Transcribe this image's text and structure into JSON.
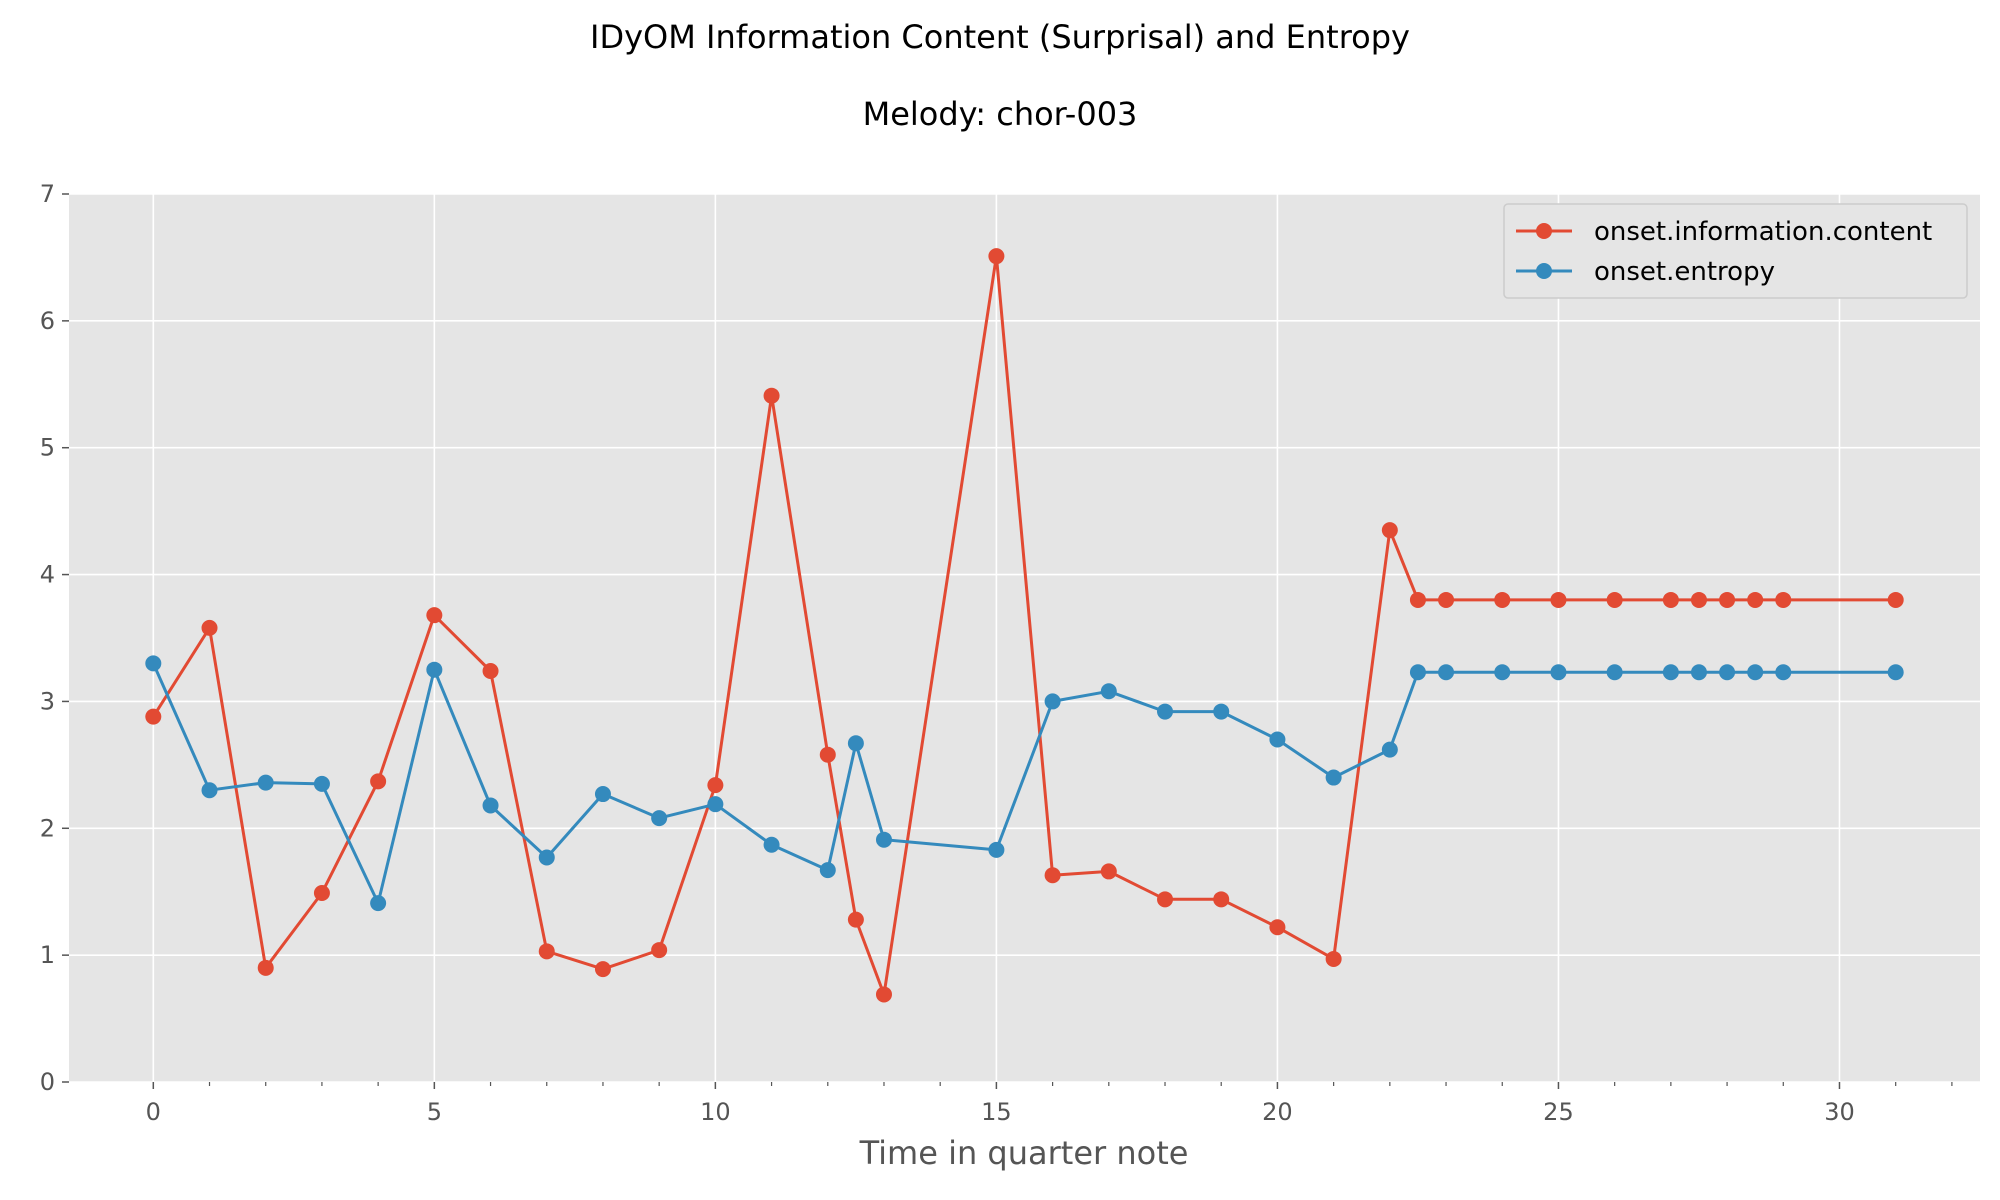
{
  "chart_data": {
    "type": "line",
    "title": "IDyOM Information Content (Surprisal) and Entropy",
    "subtitle": "Melody: chor-003",
    "xlabel": "Time in quarter note",
    "ylabel": "",
    "xlim": [
      -1.5,
      32.5
    ],
    "ylim": [
      0,
      7
    ],
    "xticks": [
      0,
      5,
      10,
      15,
      20,
      25,
      30
    ],
    "xticks_minor": [
      1,
      2,
      3,
      4,
      6,
      7,
      8,
      9,
      11,
      12,
      13,
      14,
      16,
      17,
      18,
      19,
      21,
      22,
      23,
      24,
      26,
      27,
      28,
      29,
      31,
      32
    ],
    "yticks": [
      0,
      1,
      2,
      3,
      4,
      5,
      6,
      7
    ],
    "grid": true,
    "legend_position": "top-right",
    "x": [
      0,
      1,
      2,
      3,
      4,
      5,
      6,
      7,
      8,
      9,
      10,
      11,
      12,
      12.5,
      13,
      15,
      16,
      17,
      18,
      19,
      20,
      21,
      22,
      22.5,
      23,
      24,
      25,
      26,
      27,
      27.5,
      28,
      28.5,
      29,
      31
    ],
    "series": [
      {
        "name": "onset.information.content",
        "color": "#E24A33",
        "values": [
          2.88,
          3.58,
          0.9,
          1.49,
          2.37,
          3.68,
          3.24,
          1.03,
          0.89,
          1.04,
          2.34,
          5.41,
          2.58,
          1.28,
          0.69,
          6.51,
          1.63,
          1.66,
          1.44,
          1.44,
          1.22,
          0.97,
          4.35,
          3.8,
          3.8,
          3.8,
          3.8,
          3.8,
          3.8,
          3.8,
          3.8,
          3.8,
          3.8,
          3.8
        ]
      },
      {
        "name": "onset.entropy",
        "color": "#348ABD",
        "values": [
          3.3,
          2.3,
          2.36,
          2.35,
          1.41,
          3.25,
          2.18,
          1.77,
          2.27,
          2.08,
          2.19,
          1.87,
          1.67,
          2.67,
          1.91,
          1.83,
          3.0,
          3.08,
          2.92,
          2.92,
          2.7,
          2.4,
          2.62,
          3.23,
          3.23,
          3.23,
          3.23,
          3.23,
          3.23,
          3.23,
          3.23,
          3.23,
          3.23,
          3.23
        ]
      }
    ]
  }
}
